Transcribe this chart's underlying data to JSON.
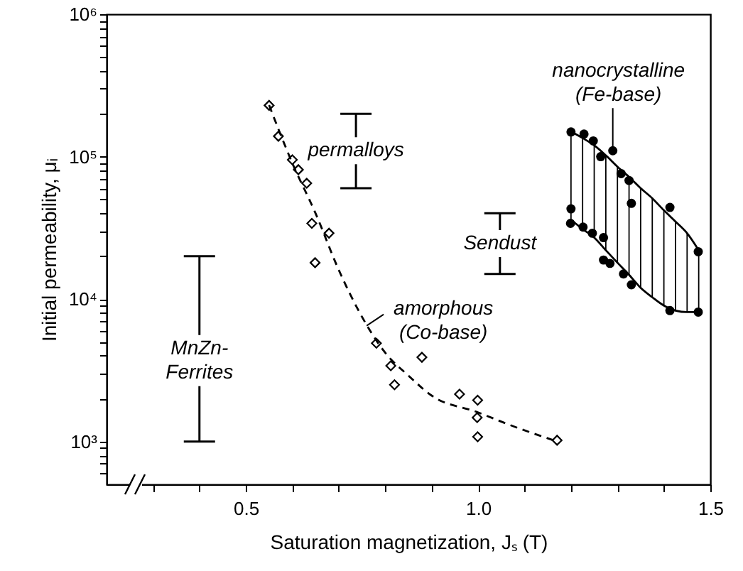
{
  "chart_data": {
    "type": "scatter",
    "xlabel": "Saturation magnetization, Jₛ (T)",
    "ylabel": "Initial permeability, μᵢ",
    "xlim": [
      0.2,
      1.5
    ],
    "ylim": [
      500,
      1000000
    ],
    "log": "y",
    "grid": false,
    "xticks": [
      {
        "value": 0.3,
        "label": null
      },
      {
        "value": 0.4,
        "label": null
      },
      0.5,
      {
        "value": 0.6,
        "label": null
      },
      {
        "value": 0.7,
        "label": null
      },
      {
        "value": 0.8,
        "label": null
      },
      {
        "value": 0.9,
        "label": null
      },
      {
        "value": 1,
        "label": "1.0"
      },
      {
        "value": 1.1,
        "label": null
      },
      {
        "value": 1.2,
        "label": null
      },
      {
        "value": 1.3,
        "label": null
      },
      {
        "value": 1.4,
        "label": null
      },
      1.5
    ],
    "yticks": [
      {
        "value": 600,
        "label": null
      },
      {
        "value": 700,
        "label": null
      },
      {
        "value": 800,
        "label": null
      },
      {
        "value": 900,
        "label": null
      },
      {
        "value": 1000,
        "label": "10³"
      },
      {
        "value": 2000,
        "label": null
      },
      {
        "value": 3000,
        "label": null
      },
      {
        "value": 4000,
        "label": null
      },
      {
        "value": 5000,
        "label": null
      },
      {
        "value": 6000,
        "label": null
      },
      {
        "value": 7000,
        "label": null
      },
      {
        "value": 8000,
        "label": null
      },
      {
        "value": 9000,
        "label": null
      },
      {
        "value": 10000,
        "label": "10⁴"
      },
      {
        "value": 20000,
        "label": null
      },
      {
        "value": 30000,
        "label": null
      },
      {
        "value": 40000,
        "label": null
      },
      {
        "value": 50000,
        "label": null
      },
      {
        "value": 60000,
        "label": null
      },
      {
        "value": 70000,
        "label": null
      },
      {
        "value": 80000,
        "label": null
      },
      {
        "value": 90000,
        "label": null
      },
      {
        "value": 100000,
        "label": "10⁵"
      },
      {
        "value": 200000,
        "label": null
      },
      {
        "value": 300000,
        "label": null
      },
      {
        "value": 400000,
        "label": null
      },
      {
        "value": 500000,
        "label": null
      },
      {
        "value": 600000,
        "label": null
      },
      {
        "value": 700000,
        "label": null
      },
      {
        "value": 800000,
        "label": null
      },
      {
        "value": 900000,
        "label": null
      },
      {
        "value": 1000000,
        "label": "10⁶"
      }
    ],
    "annotations": [
      {
        "text": "amorphous (Co-base)",
        "x": 0.76,
        "y": 6500
      },
      {
        "text": "nanocrystalline (Fe-base)",
        "x": 1.29,
        "y": 110000
      },
      {
        "text": "MnZn-Ferrites",
        "x": 0.4,
        "y": 4500
      },
      {
        "text": "permalloys",
        "x": 0.737,
        "y": 110000
      },
      {
        "text": "Sendust",
        "x": 1.047,
        "y": 24500
      }
    ],
    "series": [
      {
        "marker": "diamond",
        "color": "#000000",
        "x": [
          0.55,
          0.57,
          0.6,
          0.613,
          0.631,
          0.642,
          0.679,
          0.649,
          0.781,
          0.812,
          0.82,
          0.879,
          0.96,
          0.999,
          0.998,
          0.999,
          1.17
        ],
        "values": [
          229000,
          139000,
          95000,
          81000,
          65000,
          34000,
          29000,
          18000,
          4900,
          3400,
          2500,
          3900,
          2150,
          1950,
          1470,
          1080,
          1020
        ]
      },
      {
        "type": "line",
        "marker": "none",
        "line_style": "dashed",
        "color": "#000000",
        "x": [
          0.55,
          0.6,
          0.65,
          0.7,
          0.75,
          0.8,
          0.85,
          0.9,
          1.0,
          1.07,
          1.17
        ],
        "values": [
          230000,
          90000,
          40000,
          16000,
          7500,
          4200,
          2900,
          2100,
          1600,
          1300,
          1000
        ]
      },
      {
        "marker": "circle",
        "color": "#000000",
        "x": [
          1.2,
          1.228,
          1.248,
          1.264,
          1.29,
          1.308,
          1.325,
          1.33,
          1.413,
          1.474,
          1.2,
          1.199,
          1.226,
          1.246,
          1.27,
          1.27,
          1.284,
          1.313,
          1.33,
          1.413,
          1.474
        ],
        "values": [
          149000,
          144000,
          129000,
          100000,
          110000,
          76000,
          68000,
          47000,
          44000,
          21500,
          43000,
          34000,
          32000,
          29000,
          27000,
          18800,
          17800,
          15000,
          12600,
          8300,
          8100
        ]
      },
      {
        "type": "line",
        "marker": "none",
        "line_style": "solid",
        "color": "#000000",
        "x": [
          1.2,
          1.225,
          1.25,
          1.275,
          1.3,
          1.325,
          1.35,
          1.375,
          1.4,
          1.425,
          1.45,
          1.475
        ],
        "values": [
          150000,
          135000,
          120000,
          102000,
          85000,
          72000,
          60000,
          51000,
          42000,
          35000,
          29000,
          22000
        ]
      },
      {
        "type": "line",
        "marker": "none",
        "line_style": "solid",
        "color": "#000000",
        "x": [
          1.2,
          1.225,
          1.25,
          1.275,
          1.3,
          1.325,
          1.35,
          1.375,
          1.4,
          1.425,
          1.45,
          1.475
        ],
        "values": [
          36000,
          31000,
          27000,
          22000,
          18000,
          14800,
          12000,
          10300,
          9000,
          8300,
          8100,
          8100
        ]
      },
      {
        "type": "line",
        "color": "#000000",
        "x": [
          0.4,
          0.4
        ],
        "values": [
          1000,
          20000
        ]
      },
      {
        "type": "line",
        "color": "#000000",
        "x": [
          0.737,
          0.737
        ],
        "values": [
          60000,
          200000
        ]
      },
      {
        "type": "line",
        "color": "#000000",
        "x": [
          1.047,
          1.047
        ],
        "values": [
          15000,
          40000
        ]
      }
    ]
  }
}
